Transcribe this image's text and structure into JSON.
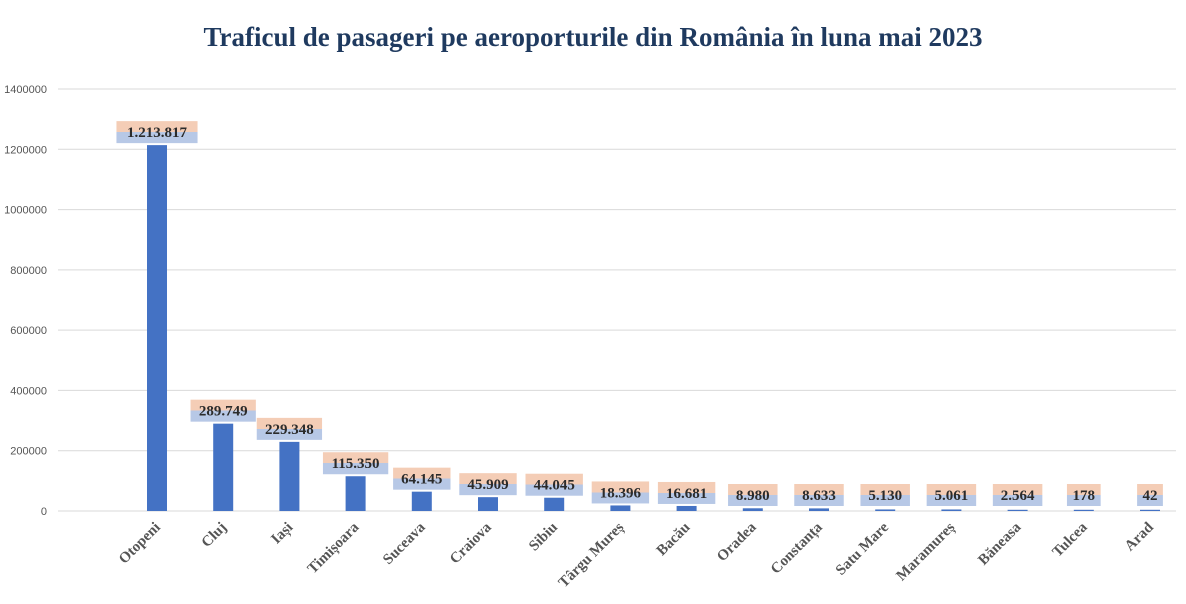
{
  "chart_data": {
    "type": "bar",
    "title": "Traficul de pasageri pe aeroporturile din România în luna mai 2023",
    "xlabel": "",
    "ylabel": "",
    "ylim": [
      0,
      1400000
    ],
    "yticks": [
      0,
      200000,
      400000,
      600000,
      800000,
      1000000,
      1200000,
      1400000
    ],
    "ytick_labels": [
      "0",
      "200000",
      "400000",
      "600000",
      "800000",
      "1000000",
      "1200000",
      "1400000"
    ],
    "grid": true,
    "legend": "none",
    "bar_color": "#4472c4",
    "label_bg_top": "#f4cdb6",
    "label_bg_bottom": "#b7c8e6",
    "categories": [
      "Otopeni",
      "Cluj",
      "Iași",
      "Timișoara",
      "Suceava",
      "Craiova",
      "Sibiu",
      "Târgu Mureș",
      "Bacău",
      "Oradea",
      "Constanța",
      "Satu Mare",
      "Maramureș",
      "Băneasa",
      "Tulcea",
      "Arad"
    ],
    "values": [
      1213817,
      289749,
      229348,
      115350,
      64145,
      45909,
      44045,
      18396,
      16681,
      8980,
      8633,
      5130,
      5061,
      2564,
      178,
      42
    ],
    "data_labels": [
      "1.213.817",
      "289.749",
      "229.348",
      "115.350",
      "64.145",
      "45.909",
      "44.045",
      "18.396",
      "16.681",
      "8.980",
      "8.633",
      "5.130",
      "5.061",
      "2.564",
      "178",
      "42"
    ]
  }
}
